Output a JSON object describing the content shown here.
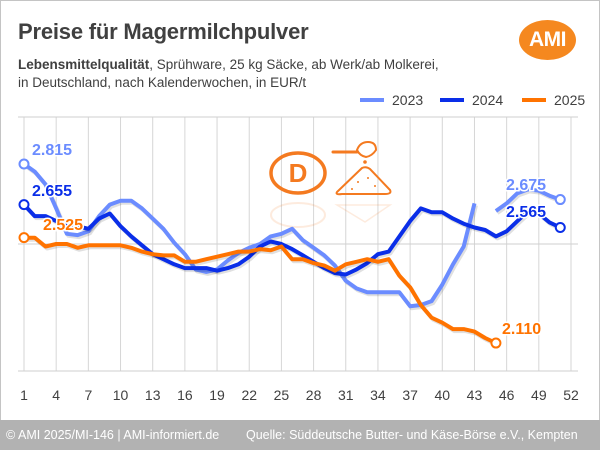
{
  "header": {
    "title": "Preise für Magermilchpulver",
    "subtitle_bold": "Lebensmittelqualität",
    "subtitle_line1_rest": ", Sprühware, 25 kg Säcke, ab Werk/ab Molkerei,",
    "subtitle_line2": "in Deutschland, nach Kalenderwochen, in EUR/t",
    "logo_text": "AMI",
    "logo_color": "#f5881f"
  },
  "footer": {
    "left": "© AMI 2025/MI-146 | AMI-informiert.de",
    "right": "Quelle: Süddeutsche Butter- und Käse-Börse e.V., Kempten"
  },
  "decor": {
    "badge_letter": "D",
    "icons": [
      "germany-badge-icon",
      "milk-powder-scoop-icon"
    ]
  },
  "chart_data": {
    "type": "line",
    "title": "Preise für Magermilchpulver",
    "xlabel": "Kalenderwoche",
    "ylabel": "EUR/t",
    "x_ticks": [
      1,
      4,
      7,
      10,
      13,
      16,
      19,
      22,
      25,
      28,
      31,
      34,
      37,
      40,
      43,
      46,
      49,
      52
    ],
    "xlim": [
      1,
      52
    ],
    "ylim": [
      2000,
      3000
    ],
    "y_gridlines": [
      2000,
      2500,
      3000
    ],
    "y_tick_labels_shown": false,
    "grid": true,
    "legend": "top-right",
    "series": [
      {
        "name": "2023",
        "color": "#6b8cff",
        "weeks": [
          1,
          2,
          3,
          4,
          5,
          6,
          7,
          8,
          9,
          10,
          11,
          12,
          13,
          14,
          15,
          16,
          17,
          18,
          19,
          20,
          21,
          22,
          23,
          24,
          25,
          26,
          27,
          28,
          29,
          30,
          31,
          32,
          33,
          34,
          35,
          36,
          37,
          38,
          39,
          40,
          41,
          42,
          43,
          null,
          45,
          46,
          47,
          48,
          49,
          50,
          51
        ],
        "values": [
          2815,
          2785,
          2735,
          2640,
          2540,
          2535,
          2550,
          2610,
          2655,
          2670,
          2670,
          2640,
          2600,
          2560,
          2505,
          2460,
          2400,
          2390,
          2400,
          2435,
          2465,
          2485,
          2500,
          2530,
          2540,
          2560,
          2515,
          2485,
          2455,
          2415,
          2355,
          2325,
          2310,
          2310,
          2310,
          2310,
          2255,
          2260,
          2275,
          2340,
          2420,
          2490,
          2660,
          null,
          2630,
          2660,
          2700,
          2715,
          2710,
          2690,
          2675
        ],
        "end_label": "2.815",
        "last_label": "2.675"
      },
      {
        "name": "2024",
        "color": "#0a2ee8",
        "weeks": [
          1,
          2,
          3,
          4,
          5,
          6,
          7,
          8,
          9,
          10,
          11,
          12,
          13,
          14,
          15,
          16,
          17,
          18,
          19,
          20,
          21,
          22,
          23,
          24,
          25,
          26,
          27,
          28,
          29,
          30,
          31,
          32,
          33,
          34,
          35,
          36,
          37,
          38,
          39,
          40,
          41,
          42,
          43,
          44,
          45,
          46,
          47,
          48,
          49,
          50,
          51
        ],
        "values": [
          2655,
          2610,
          2610,
          2590,
          2570,
          2570,
          2560,
          2600,
          2620,
          2570,
          2530,
          2495,
          2460,
          2440,
          2420,
          2405,
          2405,
          2405,
          2395,
          2405,
          2420,
          2450,
          2490,
          2510,
          2500,
          2480,
          2455,
          2430,
          2405,
          2385,
          2380,
          2400,
          2425,
          2460,
          2470,
          2530,
          2590,
          2640,
          2625,
          2625,
          2600,
          2580,
          2565,
          2555,
          2530,
          2550,
          2590,
          2630,
          2620,
          2585,
          2565
        ],
        "end_label": "2.655",
        "last_label": "2.565"
      },
      {
        "name": "2025",
        "color": "#ff7300",
        "weeks": [
          1,
          2,
          3,
          4,
          5,
          6,
          7,
          8,
          9,
          10,
          11,
          12,
          13,
          14,
          15,
          16,
          17,
          18,
          19,
          20,
          21,
          22,
          23,
          24,
          25,
          26,
          27,
          28,
          29,
          30,
          31,
          32,
          33,
          34,
          35,
          36,
          37,
          38,
          39,
          40,
          41,
          42,
          43,
          44,
          45
        ],
        "values": [
          2525,
          2525,
          2490,
          2500,
          2500,
          2485,
          2495,
          2495,
          2495,
          2495,
          2485,
          2470,
          2460,
          2455,
          2455,
          2430,
          2430,
          2440,
          2450,
          2460,
          2470,
          2470,
          2480,
          2475,
          2490,
          2440,
          2440,
          2425,
          2415,
          2395,
          2420,
          2430,
          2440,
          2430,
          2440,
          2375,
          2330,
          2260,
          2210,
          2190,
          2165,
          2165,
          2155,
          2130,
          2110
        ],
        "end_label": "2.525",
        "last_label": "2.110"
      }
    ]
  }
}
